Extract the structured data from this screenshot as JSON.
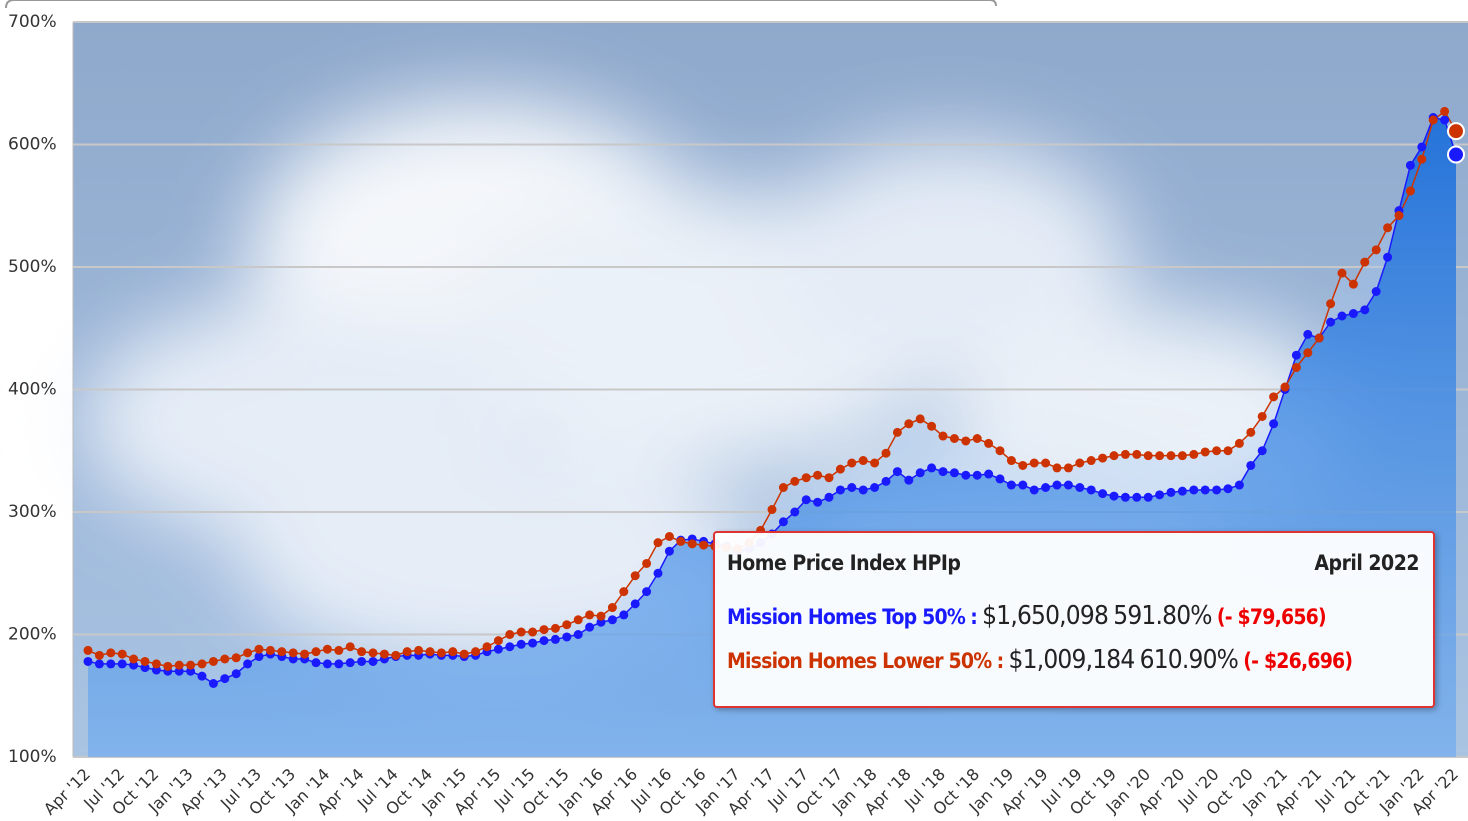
{
  "chart_data": {
    "type": "line",
    "categories": [
      "Apr '12",
      null,
      null,
      "Jul '12",
      null,
      null,
      "Oct '12",
      null,
      null,
      "Jan '13",
      null,
      null,
      "Apr '13",
      null,
      null,
      "Jul '13",
      null,
      null,
      "Oct '13",
      null,
      null,
      "Jan '14",
      null,
      null,
      "Apr '14",
      null,
      null,
      "Jul '14",
      null,
      null,
      "Oct '14",
      null,
      null,
      "Jan '15",
      null,
      null,
      "Apr '15",
      null,
      null,
      "Jul '15",
      null,
      null,
      "Oct '15",
      null,
      null,
      "Jan '16",
      null,
      null,
      "Apr '16",
      null,
      null,
      "Jul '16",
      null,
      null,
      "Oct '16",
      null,
      null,
      "Jan '17",
      null,
      null,
      "Apr '17",
      null,
      null,
      "Jul '17",
      null,
      null,
      "Oct '17",
      null,
      null,
      "Jan '18",
      null,
      null,
      "Apr '18",
      null,
      null,
      "Jul '18",
      null,
      null,
      "Oct '18",
      null,
      null,
      "Jan '19",
      null,
      null,
      "Apr '19",
      null,
      null,
      "Jul '19",
      null,
      null,
      "Oct '19",
      null,
      null,
      "Jan '20",
      null,
      null,
      "Apr '20",
      null,
      null,
      "Jul '20",
      null,
      null,
      "Oct '20",
      null,
      null,
      "Jan '21",
      null,
      null,
      "Apr '21",
      null,
      null,
      "Jul '21",
      null,
      null,
      "Oct '21",
      null,
      null,
      "Jan '22",
      null,
      null,
      "Apr '22"
    ],
    "series": [
      {
        "name": "Mission Homes Top 50%",
        "color": "#1a1aff",
        "values": [
          178,
          176,
          176,
          176,
          175,
          173,
          171,
          170,
          170,
          170,
          166,
          160,
          164,
          168,
          176,
          182,
          184,
          182,
          180,
          180,
          177,
          176,
          176,
          177,
          178,
          178,
          180,
          182,
          183,
          183,
          184,
          183,
          183,
          182,
          183,
          186,
          188,
          190,
          192,
          193,
          195,
          196,
          198,
          200,
          206,
          210,
          212,
          216,
          225,
          235,
          250,
          268,
          277,
          278,
          276,
          274,
          272,
          268,
          270,
          275,
          282,
          292,
          300,
          310,
          308,
          312,
          318,
          320,
          318,
          320,
          325,
          333,
          326,
          332,
          336,
          333,
          332,
          330,
          330,
          331,
          327,
          322,
          322,
          318,
          320,
          322,
          322,
          320,
          318,
          315,
          313,
          312,
          312,
          312,
          314,
          316,
          317,
          318,
          318,
          318,
          319,
          322,
          338,
          350,
          372,
          400,
          428,
          445,
          442,
          455,
          460,
          462,
          465,
          480,
          508,
          546,
          583,
          598,
          622,
          620,
          591.8
        ],
        "value_labels": [
          null,
          null,
          null,
          null,
          null,
          null,
          null,
          null,
          null,
          null,
          null,
          null,
          null,
          null,
          null,
          null,
          null,
          null,
          null,
          null,
          null,
          null,
          null,
          null,
          null,
          null,
          null,
          null,
          null,
          null,
          null,
          null,
          null,
          null,
          null,
          null,
          null,
          null,
          null,
          null,
          null,
          null,
          null,
          null,
          null,
          null,
          null,
          null,
          null,
          null,
          null,
          null,
          null,
          null,
          null,
          null,
          null,
          null,
          null,
          null,
          null,
          null,
          null,
          null,
          null,
          null,
          null,
          null,
          null,
          null,
          null,
          null,
          null,
          null,
          null,
          null,
          null,
          null,
          null,
          null,
          null,
          null,
          null,
          null,
          null,
          null,
          null,
          null,
          null,
          null,
          null,
          null,
          null,
          null,
          null,
          null,
          null,
          null,
          null,
          null,
          null,
          null,
          null,
          null,
          null,
          null,
          null,
          null,
          null,
          null,
          null,
          null,
          null,
          null,
          null,
          null,
          null,
          null,
          null,
          null,
          "591.80%"
        ]
      },
      {
        "name": "Mission Homes Lower 50%",
        "color": "#cc3300",
        "values": [
          187,
          183,
          185,
          184,
          180,
          178,
          176,
          174,
          175,
          175,
          176,
          178,
          180,
          181,
          185,
          188,
          187,
          186,
          185,
          184,
          186,
          188,
          187,
          190,
          186,
          185,
          184,
          183,
          186,
          187,
          186,
          185,
          186,
          184,
          186,
          190,
          195,
          200,
          202,
          202,
          204,
          205,
          208,
          212,
          216,
          215,
          222,
          235,
          248,
          258,
          275,
          280,
          276,
          274,
          273,
          272,
          271,
          270,
          275,
          285,
          302,
          320,
          325,
          328,
          330,
          328,
          335,
          340,
          342,
          340,
          348,
          365,
          372,
          376,
          370,
          362,
          360,
          358,
          360,
          356,
          350,
          342,
          338,
          340,
          340,
          336,
          336,
          340,
          342,
          344,
          346,
          347,
          347,
          346,
          346,
          346,
          346,
          347,
          349,
          350,
          350,
          356,
          365,
          378,
          394,
          402,
          418,
          430,
          442,
          470,
          495,
          486,
          504,
          514,
          532,
          542,
          562,
          588,
          620,
          627,
          610.9
        ],
        "value_labels": [
          null,
          null,
          null,
          null,
          null,
          null,
          null,
          null,
          null,
          null,
          null,
          null,
          null,
          null,
          null,
          null,
          null,
          null,
          null,
          null,
          null,
          null,
          null,
          null,
          null,
          null,
          null,
          null,
          null,
          null,
          null,
          null,
          null,
          null,
          null,
          null,
          null,
          null,
          null,
          null,
          null,
          null,
          null,
          null,
          null,
          null,
          null,
          null,
          null,
          null,
          null,
          null,
          null,
          null,
          null,
          null,
          null,
          null,
          null,
          null,
          null,
          null,
          null,
          null,
          null,
          null,
          null,
          null,
          null,
          null,
          null,
          null,
          null,
          null,
          null,
          null,
          null,
          null,
          null,
          null,
          null,
          null,
          null,
          null,
          null,
          null,
          null,
          null,
          null,
          null,
          null,
          null,
          null,
          null,
          null,
          null,
          null,
          null,
          null,
          null,
          null,
          null,
          null,
          null,
          null,
          null,
          null,
          null,
          null,
          null,
          null,
          null,
          null,
          null,
          null,
          null,
          null,
          null,
          null,
          null,
          "610.90%"
        ]
      }
    ],
    "ylim": [
      100,
      700
    ],
    "yticks": [
      {
        "value": 100,
        "label": "100%"
      },
      {
        "value": 200,
        "label": "200%"
      },
      {
        "value": 300,
        "label": "300%"
      },
      {
        "value": 400,
        "label": "400%"
      },
      {
        "value": 500,
        "label": "500%"
      },
      {
        "value": 600,
        "label": "600%"
      },
      {
        "value": 700,
        "label": "700%"
      }
    ],
    "grid": true,
    "tooltip": {
      "title": "Home Price Index HPIp",
      "date": "April 2022",
      "separator": ":",
      "rows": [
        {
          "price": "$1,650,098",
          "change": "(- $79,656)"
        },
        {
          "price": "$1,009,184",
          "change": "(- $26,696)"
        }
      ]
    }
  }
}
